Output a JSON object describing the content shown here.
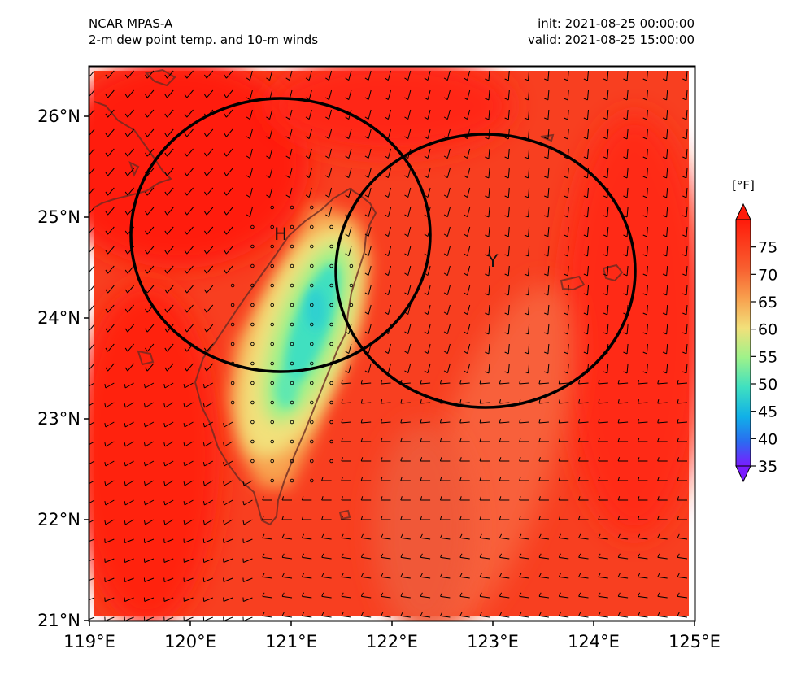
{
  "header": {
    "model": "NCAR MPAS-A",
    "field": "2-m dew point temp. and 10-m winds",
    "init": "init: 2021-08-25 00:00:00",
    "valid": "valid: 2021-08-25 15:00:00"
  },
  "chart_data": {
    "type": "heatmap",
    "title": "2-m dew point temp. and 10-m winds",
    "extent": {
      "lon": [
        119,
        125
      ],
      "lat": [
        21,
        26.5
      ]
    },
    "x_ticks": [
      "119°E",
      "120°E",
      "121°E",
      "122°E",
      "123°E",
      "124°E",
      "125°E"
    ],
    "y_ticks": [
      "21°N",
      "22°N",
      "23°N",
      "24°N",
      "25°N",
      "26°N"
    ],
    "colorbar": {
      "unit": "[°F]",
      "ticks": [
        35,
        40,
        45,
        50,
        55,
        60,
        65,
        70,
        75
      ],
      "range": [
        35,
        80
      ],
      "colors": [
        "#7a1cff",
        "#2a6cf0",
        "#10b0e8",
        "#3fe0c0",
        "#9ef28a",
        "#f2e07a",
        "#f8a04e",
        "#f86030",
        "#ff1a0a"
      ]
    },
    "markers": [
      {
        "label": "H",
        "lon": 120.95,
        "lat": 24.9
      },
      {
        "label": "Y",
        "lon": 122.95,
        "lat": 24.45
      }
    ],
    "circles": [
      {
        "center_lon": 120.95,
        "center_lat": 24.82,
        "radius_deg": 1.35
      },
      {
        "center_lon": 122.95,
        "center_lat": 24.45,
        "radius_deg": 1.35
      }
    ],
    "dry_region": {
      "min_dewpoint_f": 50,
      "lon": 121.1,
      "lat": 23.6
    }
  }
}
